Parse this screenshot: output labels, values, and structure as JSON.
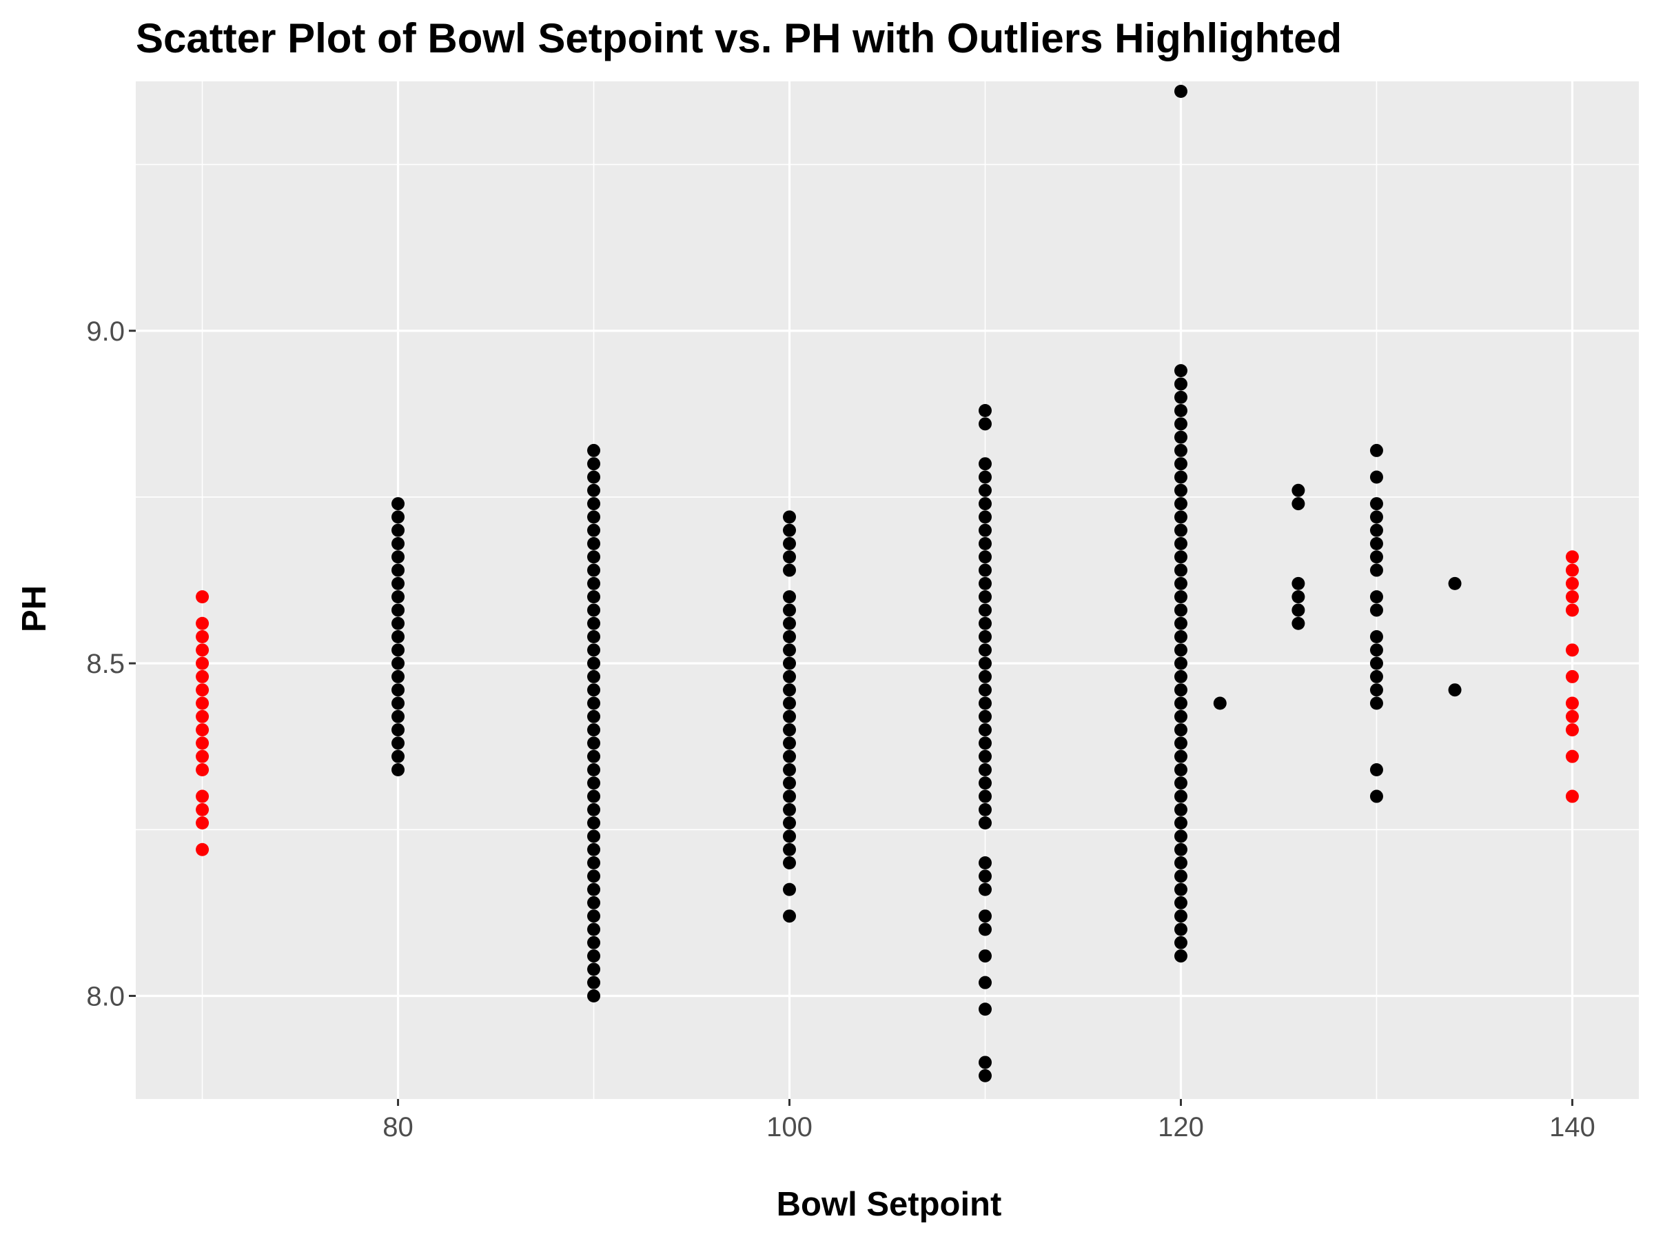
{
  "chart_data": {
    "type": "scatter",
    "title": "Scatter Plot of Bowl Setpoint vs. PH with Outliers Highlighted",
    "xlabel": "Bowl Setpoint",
    "ylabel": "PH",
    "xlim": [
      66.6,
      143.4
    ],
    "ylim": [
      7.845,
      9.375
    ],
    "x_ticks": [
      80,
      100,
      120,
      140
    ],
    "x_tick_labels": [
      "80",
      "100",
      "120",
      "140"
    ],
    "y_ticks": [
      8.0,
      8.5,
      9.0
    ],
    "y_tick_labels": [
      "8.0",
      "8.5",
      "9.0"
    ],
    "grid": true,
    "legend": "none",
    "colors": {
      "panel_background": "#ebebeb",
      "grid": "#ffffff",
      "point": "#000000",
      "outlier": "#ff0000"
    },
    "series": [
      {
        "color": "#000000",
        "groups": [
          {
            "x": 80,
            "y_range": [
              8.34,
              8.74
            ],
            "step": 0.02
          },
          {
            "x": 90,
            "y_range": [
              8.0,
              8.82
            ],
            "step": 0.02
          },
          {
            "x": 100,
            "y_range": [
              8.2,
              8.6
            ],
            "step": 0.02,
            "y_extra": [
              8.12,
              8.16,
              8.64,
              8.66,
              8.68,
              8.7,
              8.72
            ]
          },
          {
            "x": 110,
            "y_range": [
              8.26,
              8.8
            ],
            "step": 0.02,
            "y_extra": [
              7.88,
              7.9,
              7.98,
              8.02,
              8.06,
              8.1,
              8.12,
              8.16,
              8.18,
              8.2,
              8.86,
              8.88
            ]
          },
          {
            "x": 120,
            "y_range": [
              8.06,
              8.94
            ],
            "step": 0.02,
            "y_extra": [
              9.36
            ]
          },
          {
            "x": 122,
            "y": [
              8.44
            ]
          },
          {
            "x": 126,
            "y": [
              8.56,
              8.58,
              8.6,
              8.62,
              8.74,
              8.76
            ]
          },
          {
            "x": 130,
            "y": [
              8.3,
              8.34,
              8.44,
              8.46,
              8.48,
              8.5,
              8.52,
              8.54,
              8.58,
              8.6,
              8.64,
              8.66,
              8.68,
              8.7,
              8.72,
              8.74,
              8.78,
              8.82
            ]
          },
          {
            "x": 134,
            "y": [
              8.46,
              8.62
            ]
          }
        ]
      },
      {
        "color": "#ff0000",
        "groups": [
          {
            "x": 70,
            "y_range": [
              8.34,
              8.56
            ],
            "step": 0.02,
            "y_extra": [
              8.22,
              8.26,
              8.28,
              8.3,
              8.6
            ]
          },
          {
            "x": 140,
            "y": [
              8.3,
              8.36,
              8.4,
              8.42,
              8.44,
              8.48,
              8.52,
              8.58,
              8.6,
              8.62,
              8.64,
              8.66
            ]
          }
        ]
      }
    ]
  }
}
